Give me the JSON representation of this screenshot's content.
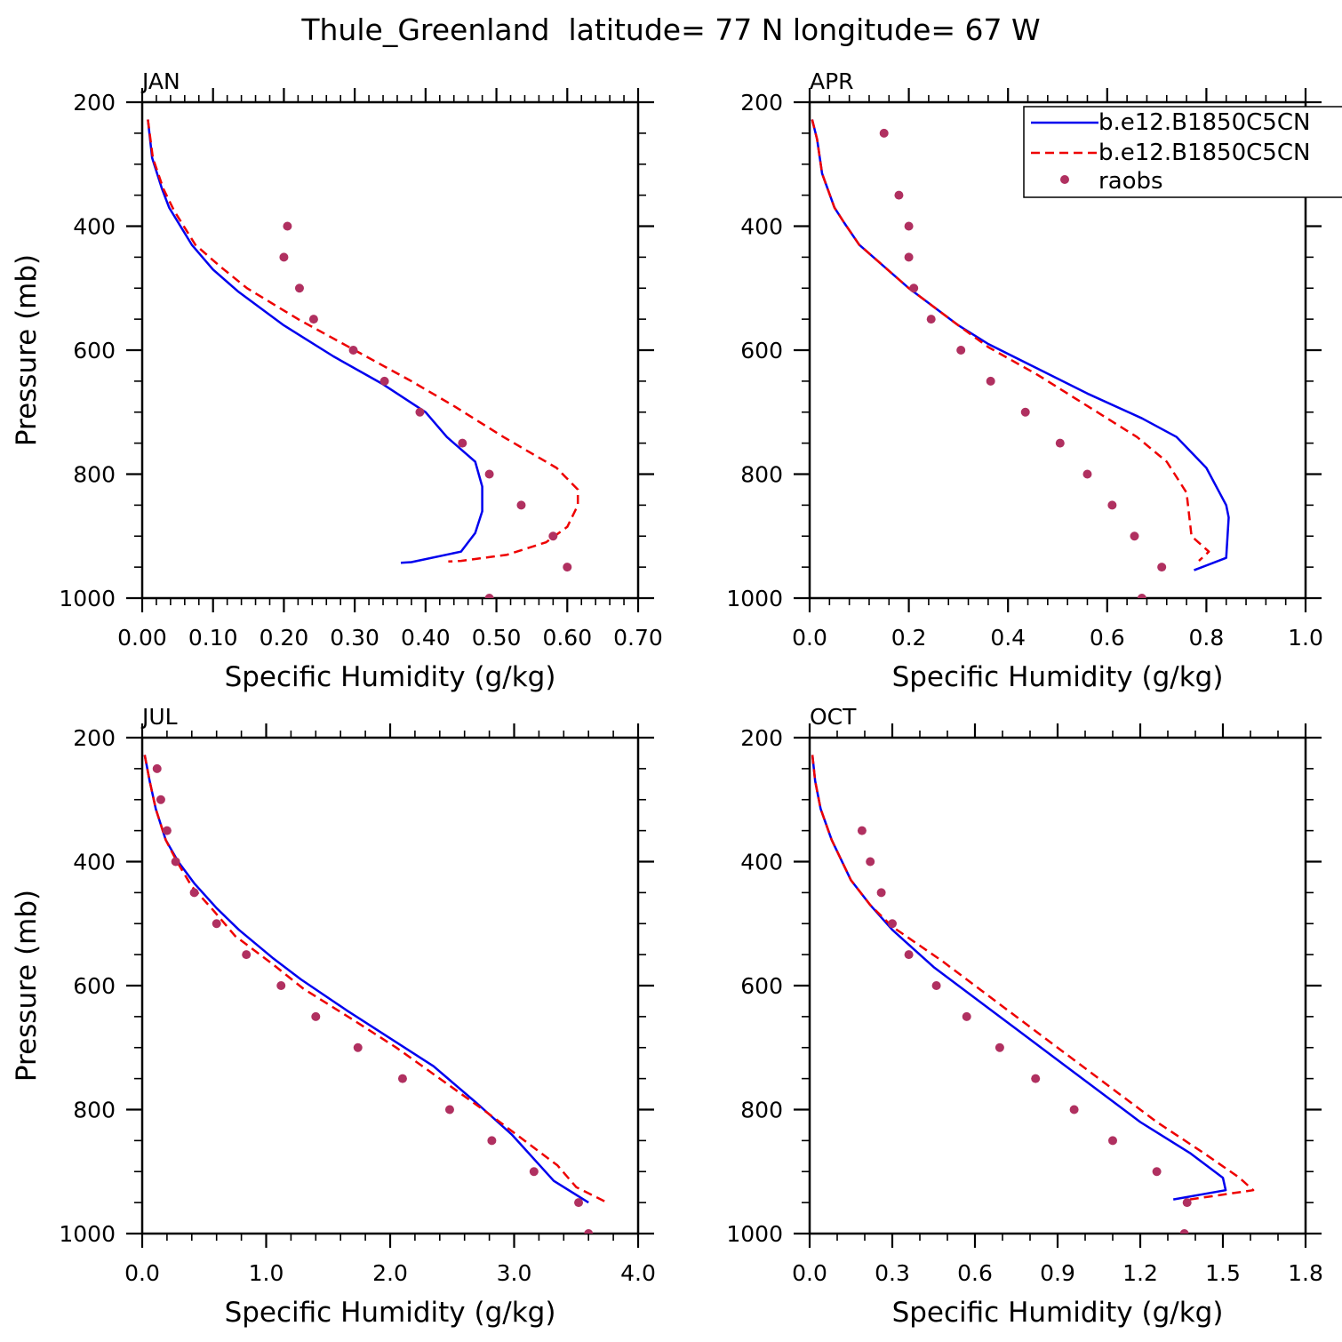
{
  "title": "Thule_Greenland  latitude= 77 N longitude= 67 W",
  "colors": {
    "model1": "#0000ee",
    "model2": "#ee0000",
    "obs": "#b03060",
    "axis": "#000000"
  },
  "legend": {
    "position": "top-right of APR panel",
    "entries": [
      {
        "label": "b.e12.B1850C5CN",
        "style": "solid",
        "color": "#0000ee"
      },
      {
        "label": "b.e12.B1850C5CN",
        "style": "dashed",
        "color": "#ee0000"
      },
      {
        "label": "raobs",
        "style": "dots",
        "color": "#b03060"
      }
    ]
  },
  "chart_data": [
    {
      "type": "line",
      "panel": "JAN",
      "xlabel": "Specific Humidity (g/kg)",
      "ylabel": "Pressure (mb)",
      "xlim": [
        0,
        0.7
      ],
      "ylim": [
        200,
        1000
      ],
      "y_reversed": true,
      "xticks": [
        0,
        0.1,
        0.2,
        0.3,
        0.4,
        0.5,
        0.6,
        0.7
      ],
      "xtick_labels": [
        "0.00",
        "0.10",
        "0.20",
        "0.30",
        "0.40",
        "0.50",
        "0.60",
        "0.70"
      ],
      "yticks": [
        200,
        400,
        600,
        800,
        1000
      ],
      "ytick_labels": [
        "200",
        "400",
        "600",
        "800",
        "1000"
      ],
      "x_minor": 0.02,
      "y_minor": 50,
      "series": [
        {
          "name": "b.e12.B1850C5CN",
          "style": "solid",
          "points": [
            [
              0.008,
              228
            ],
            [
              0.014,
              290
            ],
            [
              0.028,
              340
            ],
            [
              0.038,
              370
            ],
            [
              0.07,
              430
            ],
            [
              0.1,
              470
            ],
            [
              0.135,
              505
            ],
            [
              0.2,
              560
            ],
            [
              0.27,
              610
            ],
            [
              0.34,
              655
            ],
            [
              0.4,
              700
            ],
            [
              0.43,
              740
            ],
            [
              0.47,
              780
            ],
            [
              0.48,
              820
            ],
            [
              0.48,
              860
            ],
            [
              0.47,
              895
            ],
            [
              0.45,
              925
            ],
            [
              0.38,
              942
            ],
            [
              0.365,
              943
            ]
          ]
        },
        {
          "name": "b.e12.B1850C5CN",
          "style": "dashed",
          "points": [
            [
              0.008,
              228
            ],
            [
              0.015,
              290
            ],
            [
              0.03,
              340
            ],
            [
              0.045,
              375
            ],
            [
              0.075,
              430
            ],
            [
              0.11,
              465
            ],
            [
              0.148,
              500
            ],
            [
              0.22,
              550
            ],
            [
              0.3,
              600
            ],
            [
              0.38,
              650
            ],
            [
              0.44,
              690
            ],
            [
              0.51,
              740
            ],
            [
              0.585,
              790
            ],
            [
              0.615,
              825
            ],
            [
              0.615,
              850
            ],
            [
              0.6,
              885
            ],
            [
              0.57,
              910
            ],
            [
              0.515,
              930
            ],
            [
              0.45,
              940
            ],
            [
              0.432,
              941
            ]
          ]
        },
        {
          "name": "raobs",
          "style": "dots",
          "points": [
            [
              0.205,
              400
            ],
            [
              0.2,
              450
            ],
            [
              0.222,
              500
            ],
            [
              0.242,
              550
            ],
            [
              0.298,
              600
            ],
            [
              0.342,
              650
            ],
            [
              0.392,
              700
            ],
            [
              0.452,
              750
            ],
            [
              0.49,
              800
            ],
            [
              0.535,
              850
            ],
            [
              0.58,
              900
            ],
            [
              0.6,
              950
            ],
            [
              0.49,
              1000
            ]
          ]
        }
      ]
    },
    {
      "type": "line",
      "panel": "APR",
      "xlabel": "Specific Humidity (g/kg)",
      "ylabel": "",
      "xlim": [
        0,
        1.0
      ],
      "ylim": [
        200,
        1000
      ],
      "y_reversed": true,
      "xticks": [
        0,
        0.2,
        0.4,
        0.6,
        0.8,
        1.0
      ],
      "xtick_labels": [
        "0.0",
        "0.2",
        "0.4",
        "0.6",
        "0.8",
        "1.0"
      ],
      "yticks": [
        200,
        400,
        600,
        800,
        1000
      ],
      "ytick_labels": [
        "200",
        "400",
        "600",
        "800",
        "1000"
      ],
      "x_minor": 0.04,
      "y_minor": 50,
      "series": [
        {
          "name": "b.e12.B1850C5CN",
          "style": "solid",
          "points": [
            [
              0.005,
              228
            ],
            [
              0.015,
              260
            ],
            [
              0.025,
              315
            ],
            [
              0.05,
              370
            ],
            [
              0.07,
              395
            ],
            [
              0.1,
              430
            ],
            [
              0.2,
              500
            ],
            [
              0.3,
              560
            ],
            [
              0.36,
              590
            ],
            [
              0.46,
              630
            ],
            [
              0.56,
              670
            ],
            [
              0.67,
              710
            ],
            [
              0.74,
              740
            ],
            [
              0.8,
              790
            ],
            [
              0.84,
              850
            ],
            [
              0.845,
              870
            ],
            [
              0.84,
              935
            ],
            [
              0.775,
              955
            ]
          ]
        },
        {
          "name": "b.e12.B1850C5CN",
          "style": "dashed",
          "points": [
            [
              0.005,
              228
            ],
            [
              0.015,
              260
            ],
            [
              0.025,
              315
            ],
            [
              0.05,
              370
            ],
            [
              0.07,
              395
            ],
            [
              0.1,
              430
            ],
            [
              0.2,
              500
            ],
            [
              0.3,
              560
            ],
            [
              0.36,
              595
            ],
            [
              0.46,
              640
            ],
            [
              0.56,
              690
            ],
            [
              0.66,
              740
            ],
            [
              0.72,
              780
            ],
            [
              0.76,
              830
            ],
            [
              0.77,
              900
            ],
            [
              0.805,
              925
            ],
            [
              0.785,
              940
            ]
          ]
        },
        {
          "name": "raobs",
          "style": "dots",
          "points": [
            [
              0.15,
              250
            ],
            [
              0.18,
              350
            ],
            [
              0.2,
              400
            ],
            [
              0.2,
              450
            ],
            [
              0.21,
              500
            ],
            [
              0.245,
              550
            ],
            [
              0.305,
              600
            ],
            [
              0.365,
              650
            ],
            [
              0.435,
              700
            ],
            [
              0.505,
              750
            ],
            [
              0.56,
              800
            ],
            [
              0.61,
              850
            ],
            [
              0.655,
              900
            ],
            [
              0.71,
              950
            ],
            [
              0.67,
              1000
            ]
          ]
        }
      ]
    },
    {
      "type": "line",
      "panel": "JUL",
      "xlabel": "Specific Humidity (g/kg)",
      "ylabel": "Pressure (mb)",
      "xlim": [
        0,
        4.0
      ],
      "ylim": [
        200,
        1000
      ],
      "y_reversed": true,
      "xticks": [
        0,
        1.0,
        2.0,
        3.0,
        4.0
      ],
      "xtick_labels": [
        "0.0",
        "1.0",
        "2.0",
        "3.0",
        "4.0"
      ],
      "yticks": [
        200,
        400,
        600,
        800,
        1000
      ],
      "ytick_labels": [
        "200",
        "400",
        "600",
        "800",
        "1000"
      ],
      "x_minor": 0.2,
      "y_minor": 50,
      "series": [
        {
          "name": "b.e12.B1850C5CN",
          "style": "solid",
          "points": [
            [
              0.02,
              228
            ],
            [
              0.06,
              270
            ],
            [
              0.11,
              315
            ],
            [
              0.19,
              365
            ],
            [
              0.29,
              400
            ],
            [
              0.42,
              435
            ],
            [
              0.6,
              475
            ],
            [
              0.78,
              510
            ],
            [
              1.05,
              555
            ],
            [
              1.28,
              590
            ],
            [
              1.65,
              640
            ],
            [
              2.0,
              685
            ],
            [
              2.35,
              730
            ],
            [
              2.7,
              790
            ],
            [
              2.98,
              840
            ],
            [
              3.32,
              915
            ],
            [
              3.6,
              950
            ]
          ]
        },
        {
          "name": "b.e12.B1850C5CN",
          "style": "dashed",
          "points": [
            [
              0.02,
              228
            ],
            [
              0.06,
              270
            ],
            [
              0.11,
              315
            ],
            [
              0.19,
              365
            ],
            [
              0.28,
              400
            ],
            [
              0.4,
              440
            ],
            [
              0.58,
              480
            ],
            [
              0.75,
              520
            ],
            [
              1.05,
              565
            ],
            [
              1.3,
              605
            ],
            [
              1.7,
              655
            ],
            [
              2.05,
              700
            ],
            [
              2.4,
              750
            ],
            [
              2.75,
              800
            ],
            [
              3.05,
              845
            ],
            [
              3.35,
              890
            ],
            [
              3.5,
              925
            ],
            [
              3.75,
              950
            ]
          ]
        },
        {
          "name": "raobs",
          "style": "dots",
          "points": [
            [
              0.12,
              250
            ],
            [
              0.15,
              300
            ],
            [
              0.2,
              350
            ],
            [
              0.27,
              400
            ],
            [
              0.42,
              450
            ],
            [
              0.6,
              500
            ],
            [
              0.84,
              550
            ],
            [
              1.12,
              600
            ],
            [
              1.4,
              650
            ],
            [
              1.74,
              700
            ],
            [
              2.1,
              750
            ],
            [
              2.48,
              800
            ],
            [
              2.82,
              850
            ],
            [
              3.16,
              900
            ],
            [
              3.52,
              950
            ],
            [
              3.6,
              1000
            ]
          ]
        }
      ]
    },
    {
      "type": "line",
      "panel": "OCT",
      "xlabel": "Specific Humidity (g/kg)",
      "ylabel": "",
      "xlim": [
        0,
        1.8
      ],
      "ylim": [
        200,
        1000
      ],
      "y_reversed": true,
      "xticks": [
        0,
        0.3,
        0.6,
        0.9,
        1.2,
        1.5,
        1.8
      ],
      "xtick_labels": [
        "0.0",
        "0.3",
        "0.6",
        "0.9",
        "1.2",
        "1.5",
        "1.8"
      ],
      "yticks": [
        200,
        400,
        600,
        800,
        1000
      ],
      "ytick_labels": [
        "200",
        "400",
        "600",
        "800",
        "1000"
      ],
      "x_minor": 0.1,
      "y_minor": 50,
      "series": [
        {
          "name": "b.e12.B1850C5CN",
          "style": "solid",
          "points": [
            [
              0.01,
              228
            ],
            [
              0.02,
              270
            ],
            [
              0.04,
              315
            ],
            [
              0.08,
              365
            ],
            [
              0.15,
              430
            ],
            [
              0.22,
              470
            ],
            [
              0.3,
              510
            ],
            [
              0.45,
              570
            ],
            [
              0.6,
              620
            ],
            [
              0.9,
              720
            ],
            [
              1.2,
              820
            ],
            [
              1.38,
              870
            ],
            [
              1.5,
              910
            ],
            [
              1.51,
              930
            ],
            [
              1.32,
              945
            ]
          ]
        },
        {
          "name": "b.e12.B1850C5CN",
          "style": "dashed",
          "points": [
            [
              0.01,
              228
            ],
            [
              0.02,
              270
            ],
            [
              0.04,
              315
            ],
            [
              0.08,
              365
            ],
            [
              0.15,
              430
            ],
            [
              0.22,
              470
            ],
            [
              0.3,
              505
            ],
            [
              0.48,
              560
            ],
            [
              0.66,
              620
            ],
            [
              0.96,
              720
            ],
            [
              1.26,
              820
            ],
            [
              1.43,
              870
            ],
            [
              1.56,
              910
            ],
            [
              1.61,
              930
            ],
            [
              1.38,
              945
            ]
          ]
        },
        {
          "name": "raobs",
          "style": "dots",
          "points": [
            [
              0.19,
              350
            ],
            [
              0.22,
              400
            ],
            [
              0.26,
              450
            ],
            [
              0.3,
              500
            ],
            [
              0.36,
              550
            ],
            [
              0.46,
              600
            ],
            [
              0.57,
              650
            ],
            [
              0.69,
              700
            ],
            [
              0.82,
              750
            ],
            [
              0.96,
              800
            ],
            [
              1.1,
              850
            ],
            [
              1.26,
              900
            ],
            [
              1.37,
              950
            ],
            [
              1.36,
              1000
            ]
          ]
        }
      ]
    }
  ]
}
